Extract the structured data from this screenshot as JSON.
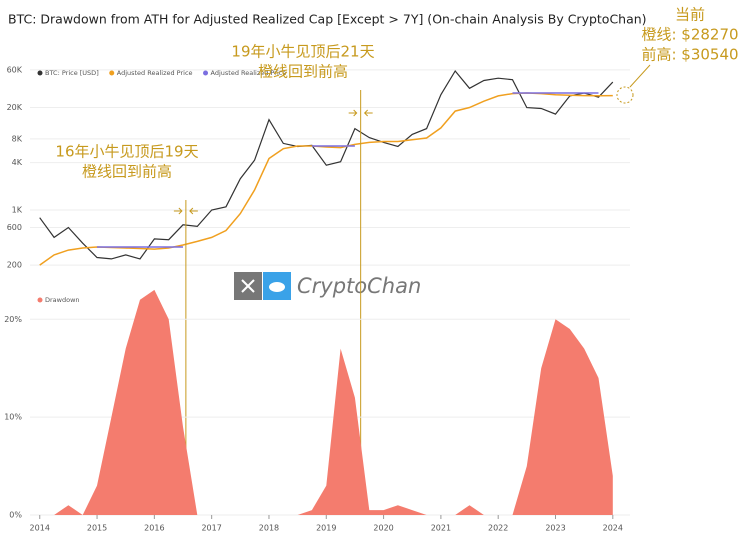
{
  "chart_data": [
    {
      "type": "line",
      "title": "BTC: Drawdown from ATH for Adjusted Realized Cap [Except > 7Y] (On-chain Analysis By CryptoChan)",
      "log_scale": true,
      "grid": true,
      "x": [
        2014.0,
        2014.25,
        2014.5,
        2014.75,
        2015.0,
        2015.25,
        2015.5,
        2015.75,
        2016.0,
        2016.25,
        2016.5,
        2016.75,
        2017.0,
        2017.25,
        2017.5,
        2017.75,
        2018.0,
        2018.25,
        2018.5,
        2018.75,
        2019.0,
        2019.25,
        2019.5,
        2019.75,
        2020.0,
        2020.25,
        2020.5,
        2020.75,
        2021.0,
        2021.25,
        2021.5,
        2021.75,
        2022.0,
        2022.25,
        2022.5,
        2022.75,
        2023.0,
        2023.25,
        2023.5,
        2023.75,
        2024.0
      ],
      "series": [
        {
          "name": "BTC: Price [USD]",
          "color": "#333333",
          "values": [
            800,
            450,
            600,
            380,
            250,
            240,
            270,
            240,
            430,
            420,
            650,
            620,
            1000,
            1100,
            2500,
            4300,
            14000,
            7000,
            6400,
            6600,
            3700,
            4100,
            10800,
            8300,
            7200,
            6400,
            9100,
            10800,
            29000,
            58000,
            35000,
            44000,
            47000,
            45000,
            19900,
            19400,
            16500,
            28000,
            30500,
            27000,
            42000
          ]
        },
        {
          "name": "Adjusted Realized Price",
          "color": "#f0a020",
          "values": [
            200,
            270,
            310,
            330,
            340,
            335,
            330,
            325,
            320,
            330,
            360,
            400,
            450,
            550,
            900,
            1800,
            4500,
            6000,
            6500,
            6500,
            6300,
            6200,
            6800,
            7200,
            7400,
            7400,
            7800,
            8200,
            11000,
            18000,
            20000,
            24000,
            28000,
            30000,
            30540,
            30000,
            29000,
            28500,
            28300,
            28200,
            28270
          ]
        },
        {
          "name": "Adjusted Realized Price",
          "color": "#7b6fe0",
          "values": [
            null,
            null,
            null,
            null,
            340,
            340,
            340,
            340,
            340,
            340,
            340,
            null,
            null,
            null,
            null,
            null,
            null,
            null,
            null,
            6500,
            6500,
            6500,
            6500,
            null,
            null,
            null,
            null,
            null,
            null,
            null,
            null,
            null,
            null,
            30540,
            30540,
            30540,
            30540,
            30540,
            30540,
            30540,
            null
          ]
        }
      ],
      "xlim": [
        2013.83,
        2024.3
      ],
      "ylim": [
        150,
        80000
      ],
      "yticks": [
        {
          "value": 200,
          "label": "200"
        },
        {
          "value": 600,
          "label": "600"
        },
        {
          "value": 1000,
          "label": "1K"
        },
        {
          "value": 4000,
          "label": "4K"
        },
        {
          "value": 8000,
          "label": "8K"
        },
        {
          "value": 20000,
          "label": "20K"
        },
        {
          "value": 60000,
          "label": "60K"
        }
      ],
      "annotations": [
        {
          "x": 2016.55,
          "lines": [
            "16年小牛见顶后19天",
            "橙线回到前高"
          ]
        },
        {
          "x": 2019.6,
          "lines": [
            "19年小牛见顶后21天",
            "橙线回到前高"
          ]
        },
        {
          "lines": [
            "当前",
            "橙线: $28270",
            "前高: $30540"
          ]
        }
      ],
      "watermark": "CryptoChan"
    },
    {
      "type": "area",
      "x": [
        2014.0,
        2014.25,
        2014.5,
        2014.75,
        2015.0,
        2015.25,
        2015.5,
        2015.75,
        2016.0,
        2016.25,
        2016.5,
        2016.75,
        2017.0,
        2017.25,
        2017.5,
        2017.75,
        2018.0,
        2018.25,
        2018.5,
        2018.75,
        2019.0,
        2019.25,
        2019.5,
        2019.75,
        2020.0,
        2020.25,
        2020.5,
        2020.75,
        2021.0,
        2021.25,
        2021.5,
        2021.75,
        2022.0,
        2022.25,
        2022.5,
        2022.75,
        2023.0,
        2023.25,
        2023.5,
        2023.75,
        2024.0
      ],
      "series": [
        {
          "name": "Drawdown",
          "color": "#f47c6e",
          "values": [
            0,
            0,
            1,
            0,
            3,
            10,
            17,
            22,
            23,
            20,
            9,
            0,
            0,
            0,
            0,
            0,
            0,
            0,
            0,
            0.5,
            3,
            17,
            12,
            0.5,
            0.5,
            1,
            0.5,
            0,
            0,
            0,
            1,
            0,
            0,
            0,
            5,
            15,
            20,
            19,
            17,
            14,
            4
          ]
        }
      ],
      "xlim": [
        2013.83,
        2024.3
      ],
      "ylim": [
        0,
        23.5
      ],
      "xticks": [
        2014,
        2015,
        2016,
        2017,
        2018,
        2019,
        2020,
        2021,
        2022,
        2023,
        2024
      ],
      "yticks": [
        {
          "value": 0,
          "label": "0%"
        },
        {
          "value": 10,
          "label": "10%"
        },
        {
          "value": 20,
          "label": "20%"
        }
      ]
    }
  ]
}
